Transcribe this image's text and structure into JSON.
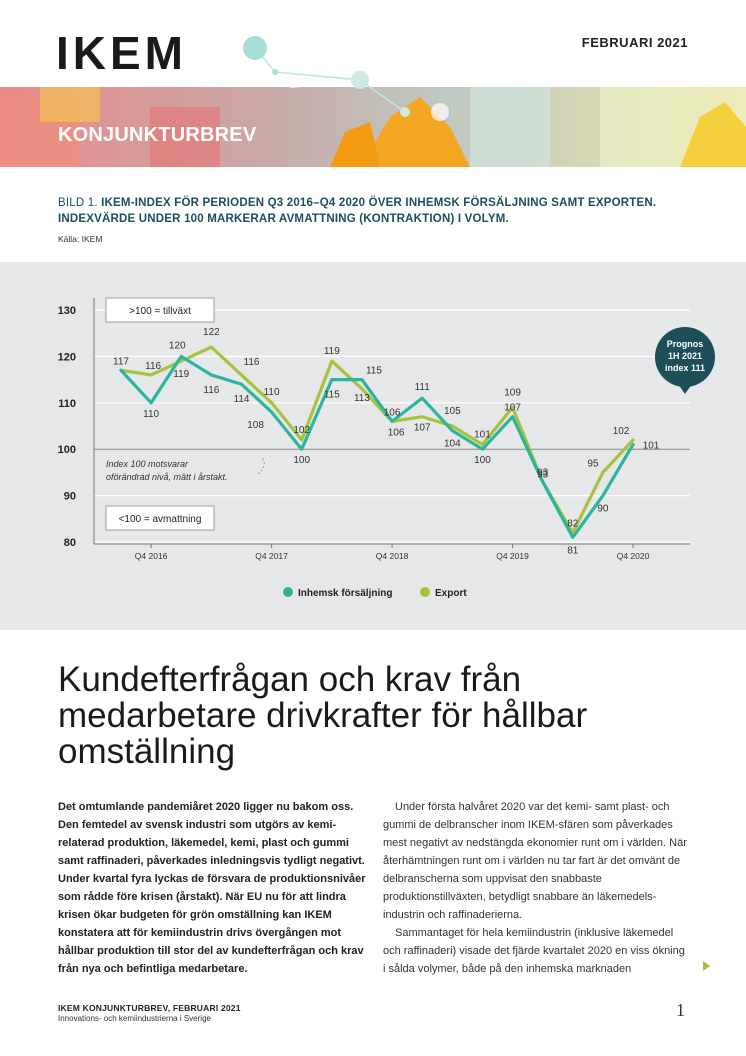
{
  "header": {
    "logo": "IKEM",
    "date": "FEBRUARI 2021"
  },
  "banner": {
    "title": "KONJUNKTURBREV"
  },
  "figure": {
    "caption_prefix": "BILD 1. ",
    "caption": "IKEM-INDEX FÖR PERIODEN Q3 2016–Q4 2020 ÖVER INHEMSK FÖRSÄLJNING SAMT EXPORTEN. INDEXVÄRDE UNDER 100 MARKERAR AVMATTNING (KONTRAKTION) I VOLYM.",
    "source": "Källa: IKEM"
  },
  "chart_data": {
    "type": "line",
    "x": [
      "Q3 2016",
      "Q4 2016",
      "Q1 2017",
      "Q2 2017",
      "Q3 2017",
      "Q4 2017",
      "Q1 2018",
      "Q2 2018",
      "Q3 2018",
      "Q4 2018",
      "Q1 2019",
      "Q2 2019",
      "Q3 2019",
      "Q4 2019",
      "Q1 2020",
      "Q2 2020",
      "Q3 2020",
      "Q4 2020"
    ],
    "tick_labels": [
      "Q4 2016",
      "Q4 2017",
      "Q4 2018",
      "Q4 2019",
      "Q4 2020"
    ],
    "series": [
      {
        "name": "Inhemsk försäljning",
        "color": "#2bb5a0",
        "values": [
          117,
          110,
          120,
          116,
          114,
          108,
          100,
          115,
          115,
          106,
          111,
          104,
          100,
          107,
          93,
          81,
          90,
          101
        ]
      },
      {
        "name": "Export",
        "color": "#a7c33e",
        "values": [
          117,
          116,
          119,
          122,
          116,
          110,
          102,
          119,
          113,
          106,
          107,
          105,
          101,
          109,
          93,
          82,
          95,
          102
        ]
      }
    ],
    "yticks": [
      80,
      90,
      100,
      110,
      120,
      130
    ],
    "ylim": [
      80,
      130
    ],
    "grid": true,
    "legend_position": "bottom-center",
    "annotations": {
      "growth": ">100 = tillväxt",
      "contraction": "<100 = avmattning",
      "note_line1": "Index 100 motsvarar",
      "note_line2": "oförändrad nivå, mätt i årstakt.",
      "forecast_line1": "Prognos",
      "forecast_line2": "1H 2021",
      "forecast_line3": "index 111"
    }
  },
  "article": {
    "headline": "Kundefterfrågan och krav från medarbetare drivkrafter för hållbar omställning",
    "lead": "Det omtumlande pandemiåret 2020 ligger nu bakom oss. Den femtedel av svensk industri som utgörs av kemi-relaterad produktion, läkemedel, kemi, plast och gummi samt raffinaderi, påverkades inledningsvis tydligt negativt. Under kvartal fyra lyckas de försvara de produktionsnivåer som rådde före krisen (årstakt). När EU nu för att lindra krisen ökar budgeten för grön omställning kan IKEM konstatera att för kemiindustrin drivs övergången mot hållbar produktion till stor del av kundefterfrågan och krav från nya och befintliga medarbetare.",
    "p1": "Under första halvåret 2020 var det kemi- samt plast- och gummi de delbranscher inom IKEM-sfären som påverkades mest negativt av nedstängda ekonomier runt om i världen. När återhämtningen runt om i världen nu tar fart är det omvänt de delbranscherna som uppvisat den snabbaste produktionstillväxten, betydligt snabbare än läkemedels-industrin och raffinaderierna.",
    "p2": "Sammantaget för hela kemiindustrin (inklusive läkemedel och raffinaderi) visade det fjärde kvartalet 2020 en viss ökning i sålda volymer, både på den inhemska marknaden"
  },
  "footer": {
    "line1": "IKEM KONJUNKTURBREV, FEBRUARI 2021",
    "line2": "Innovations- och kemiindustrierna i Sverige",
    "page": "1"
  }
}
